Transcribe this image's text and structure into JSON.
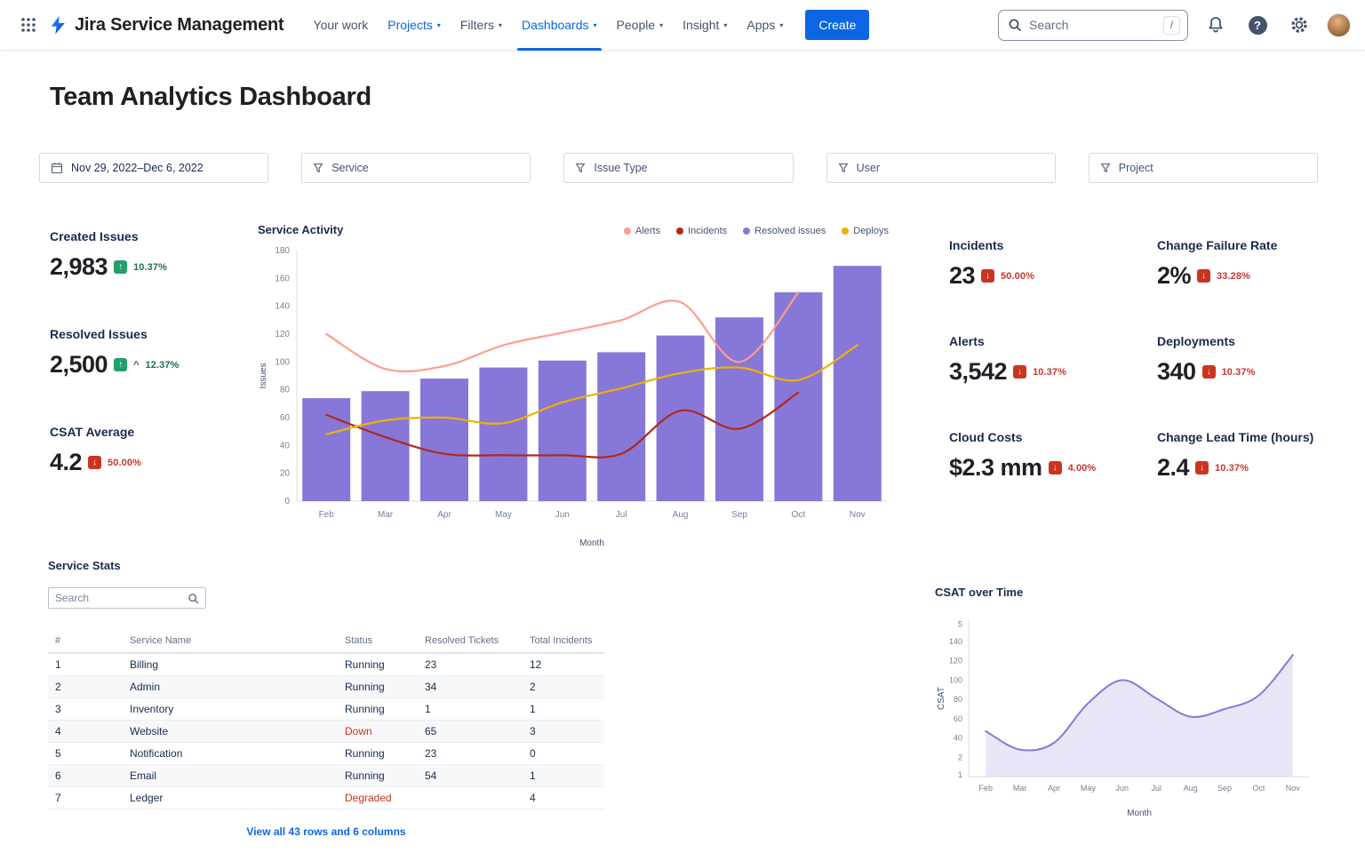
{
  "colors": {
    "accent_blue": "#0C66E4",
    "green_badge": "#22A06B",
    "green_text": "#216E4E",
    "red_badge": "#CA3521",
    "red_text": "#C9372C",
    "purple": "#8777D9",
    "salmon": "#FF9C8F",
    "dark_red": "#AE2A19",
    "yellow": "#EDB200"
  },
  "icons": {
    "up_arrow": "↑",
    "down_arrow": "↓",
    "chevron_down": "▾",
    "question": "?"
  },
  "header": {
    "brand": "Jira Service Management",
    "nav": [
      {
        "label": "Your work"
      },
      {
        "label": "Projects"
      },
      {
        "label": "Filters"
      },
      {
        "label": "Dashboards"
      },
      {
        "label": "People"
      },
      {
        "label": "Insight"
      },
      {
        "label": "Apps"
      }
    ],
    "create_label": "Create",
    "search_placeholder": "Search",
    "search_shortcut": "/"
  },
  "page": {
    "title": "Team Analytics Dashboard"
  },
  "filters": [
    {
      "icon": "calendar",
      "label": "Nov 29, 2022–Dec 6, 2022"
    },
    {
      "icon": "filter",
      "label": "Service"
    },
    {
      "icon": "filter",
      "label": "Issue Type"
    },
    {
      "icon": "filter",
      "label": "User"
    },
    {
      "icon": "filter",
      "label": "Project"
    }
  ],
  "kpis_left": [
    {
      "label": "Created Issues",
      "value": "2,983",
      "trend": "up",
      "delta": "10.37%"
    },
    {
      "label": "Resolved Issues",
      "value": "2,500",
      "trend": "up",
      "caret": "^",
      "delta": "12.37%"
    },
    {
      "label": "CSAT Average",
      "value": "4.2",
      "trend": "down",
      "delta": "50.00%"
    }
  ],
  "kpis_right": [
    {
      "label": "Incidents",
      "value": "23",
      "trend": "down",
      "delta": "50.00%"
    },
    {
      "label": "Change Failure Rate",
      "value": "2%",
      "trend": "down",
      "delta": "33.28%"
    },
    {
      "label": "Alerts",
      "value": "3,542",
      "trend": "down",
      "delta": "10.37%"
    },
    {
      "label": "Deployments",
      "value": "340",
      "trend": "down",
      "delta": "10.37%"
    },
    {
      "label": "Cloud Costs",
      "value": "$2.3 mm",
      "trend": "down",
      "delta": "4.00%"
    },
    {
      "label": "Change Lead Time (hours)",
      "value": "2.4",
      "trend": "down",
      "delta": "10.37%"
    }
  ],
  "service_stats": {
    "title": "Service Stats",
    "search_placeholder": "Search",
    "columns": [
      "#",
      "Service Name",
      "Status",
      "Resolved Tickets",
      "Total Incidents"
    ],
    "rows": [
      {
        "num": "1",
        "name": "Billing",
        "status": "Running",
        "state": "ok",
        "resolved": "23",
        "incidents": "12"
      },
      {
        "num": "2",
        "name": "Admin",
        "status": "Running",
        "state": "ok",
        "resolved": "34",
        "incidents": "2"
      },
      {
        "num": "3",
        "name": "Inventory",
        "status": "Running",
        "state": "ok",
        "resolved": "1",
        "incidents": "1"
      },
      {
        "num": "4",
        "name": "Website",
        "status": "Down",
        "state": "down",
        "resolved": "65",
        "incidents": "3"
      },
      {
        "num": "5",
        "name": "Notification",
        "status": "Running",
        "state": "ok",
        "resolved": "23",
        "incidents": "0"
      },
      {
        "num": "6",
        "name": "Email",
        "status": "Running",
        "state": "ok",
        "resolved": "54",
        "incidents": "1"
      },
      {
        "num": "7",
        "name": "Ledger",
        "status": "Degraded",
        "state": "degraded",
        "resolved": "",
        "incidents": "4"
      }
    ],
    "footer_link": "View all 43 rows and 6 columns"
  },
  "chart_data": [
    {
      "type": "bar",
      "title": "Service Activity",
      "xlabel": "Month",
      "ylabel": "Issues",
      "categories": [
        "Feb",
        "Mar",
        "Apr",
        "May",
        "Jun",
        "Jul",
        "Aug",
        "Sep",
        "Oct",
        "Nov"
      ],
      "ylim": [
        0,
        180
      ],
      "ytick_step": 20,
      "bars": {
        "name": "Resolved issues",
        "color": "#8777D9",
        "values": [
          74,
          79,
          88,
          96,
          101,
          107,
          119,
          132,
          150,
          169
        ]
      },
      "lines": [
        {
          "name": "Alerts",
          "color": "#FF9C8F",
          "values": [
            120,
            95,
            97,
            112,
            121,
            130,
            143,
            100,
            150,
            null
          ]
        },
        {
          "name": "Incidents",
          "color": "#AE2A19",
          "values": [
            62,
            46,
            34,
            33,
            33,
            34,
            65,
            52,
            78,
            null
          ]
        },
        {
          "name": "Deploys",
          "color": "#EDB200",
          "values": [
            48,
            58,
            60,
            56,
            71,
            81,
            92,
            96,
            87,
            112
          ]
        }
      ],
      "legend": [
        {
          "label": "Alerts",
          "color": "#FF9C8F"
        },
        {
          "label": "Incidents",
          "color": "#AE2A19"
        },
        {
          "label": "Resolved issues",
          "color": "#8777D9"
        },
        {
          "label": "Deploys",
          "color": "#EDB200"
        }
      ]
    },
    {
      "type": "area",
      "title": "CSAT over Time",
      "xlabel": "Month",
      "ylabel": "CSAT",
      "categories": [
        "Feb",
        "Mar",
        "Apr",
        "May",
        "Jun",
        "Jul",
        "Aug",
        "Sep",
        "Oct",
        "Nov"
      ],
      "values": [
        47,
        28,
        35,
        76,
        100,
        81,
        62,
        70,
        84,
        126
      ],
      "ylim": [
        0,
        162
      ],
      "y_ticks": [
        {
          "label": "1",
          "v": 2
        },
        {
          "label": "2",
          "v": 20
        },
        {
          "label": "40",
          "v": 40
        },
        {
          "label": "60",
          "v": 60
        },
        {
          "label": "80",
          "v": 80
        },
        {
          "label": "100",
          "v": 100
        },
        {
          "label": "120",
          "v": 120
        },
        {
          "label": "140",
          "v": 140
        },
        {
          "label": "5",
          "v": 158
        }
      ],
      "color": "#8777D9",
      "fill_opacity": 0.18
    }
  ]
}
